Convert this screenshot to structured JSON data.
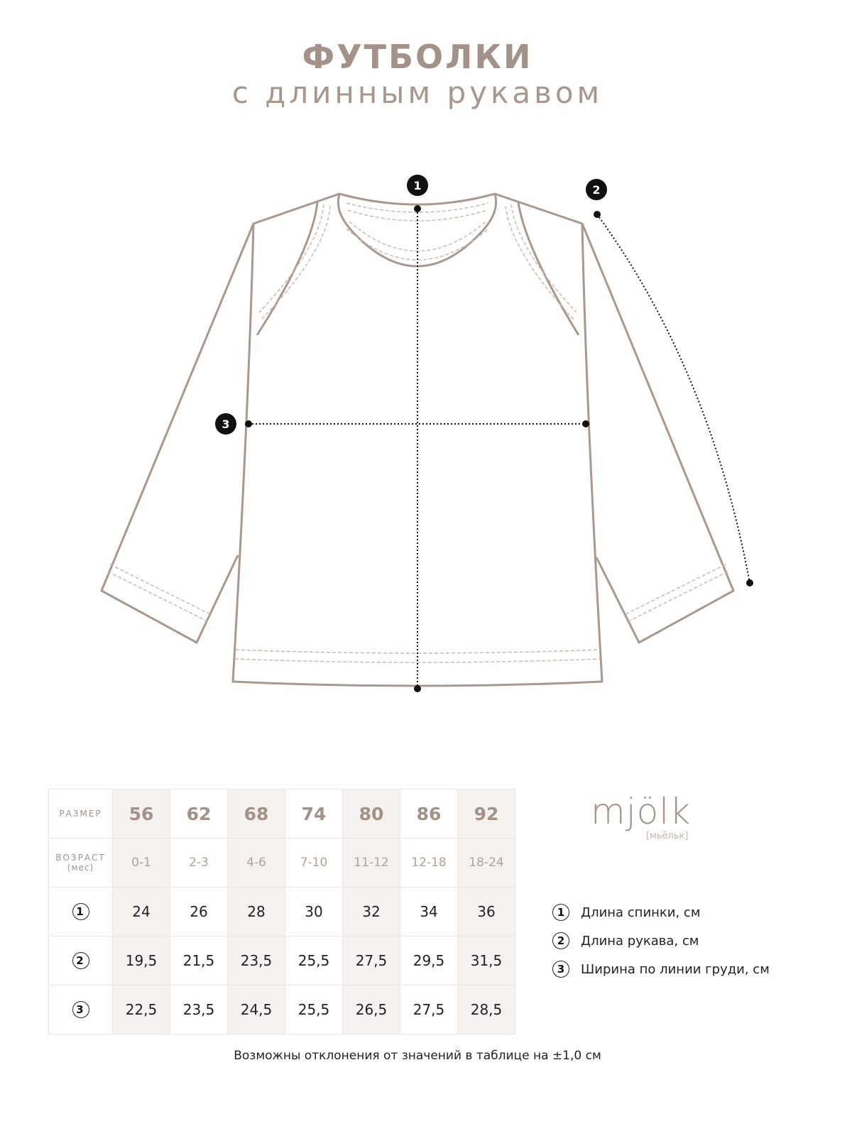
{
  "header": {
    "title": "ФУТБОЛКИ",
    "subtitle": "с длинным рукавом"
  },
  "diagram": {
    "markers": [
      "1",
      "2",
      "3"
    ],
    "line_color": "#a89890",
    "measure_color": "#111111"
  },
  "table": {
    "size_label": "РАЗМЕР",
    "age_label": "ВОЗРАСТ",
    "age_unit": "(мес)",
    "sizes": [
      "56",
      "62",
      "68",
      "74",
      "80",
      "86",
      "92"
    ],
    "ages": [
      "0-1",
      "2-3",
      "4-6",
      "7-10",
      "11-12",
      "12-18",
      "18-24"
    ],
    "rows": [
      {
        "marker": "1",
        "values": [
          "24",
          "26",
          "28",
          "30",
          "32",
          "34",
          "36"
        ]
      },
      {
        "marker": "2",
        "values": [
          "19,5",
          "21,5",
          "23,5",
          "25,5",
          "27,5",
          "29,5",
          "31,5"
        ]
      },
      {
        "marker": "3",
        "values": [
          "22,5",
          "23,5",
          "24,5",
          "25,5",
          "26,5",
          "27,5",
          "28,5"
        ]
      }
    ],
    "shade_color": "#f5f1ef"
  },
  "logo": {
    "text": "mjölk",
    "sub": "[мьёльк]"
  },
  "legend": [
    {
      "marker": "1",
      "label": "Длина спинки, см"
    },
    {
      "marker": "2",
      "label": "Длина рукава, см"
    },
    {
      "marker": "3",
      "label": "Ширина по линии груди, см"
    }
  ],
  "note": "Возможны отклонения от значений в таблице на ±1,0 см"
}
